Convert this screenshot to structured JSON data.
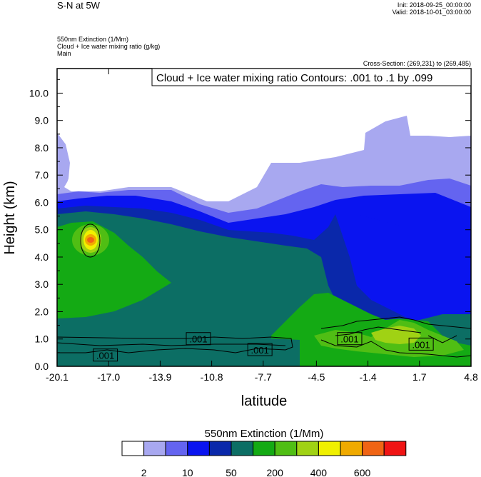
{
  "header": {
    "title": "S-N at 5W",
    "init": "Init: 2018-09-25_00:00:00",
    "valid": "Valid: 2018-10-01_03:00:00",
    "field_lines": [
      "550nm Extinction   (1/Mm)",
      "Cloud + Ice water mixing ratio   (g/kg)",
      "Main"
    ],
    "cross_section": "Cross-Section: (269,231) to (269,485)"
  },
  "chart_data": {
    "type": "heatmap",
    "contour_title": "Cloud + Ice water mixing ratio Contours: .001 to .1 by .099",
    "xlabel": "latitude",
    "ylabel": "Height (km)",
    "xlim": [
      -20.1,
      4.8
    ],
    "ylim": [
      0.0,
      10.9
    ],
    "x_ticks": [
      "-20.1",
      "-17.0",
      "-13.9",
      "-10.8",
      "-7.7",
      "-4.5",
      "-1.4",
      "1.7",
      "4.8"
    ],
    "x_tick_values": [
      -20.1,
      -17.0,
      -13.9,
      -10.8,
      -7.7,
      -4.5,
      -1.4,
      1.7,
      4.8
    ],
    "y_ticks": [
      "0.0",
      "1.0",
      "2.0",
      "3.0",
      "4.0",
      "5.0",
      "6.0",
      "7.0",
      "8.0",
      "9.0",
      "10.0"
    ],
    "y_tick_values": [
      0,
      1,
      2,
      3,
      4,
      5,
      6,
      7,
      8,
      9,
      10
    ],
    "contour_labels": [
      {
        "text": ".001",
        "x": -17.2,
        "y": 0.4
      },
      {
        "text": ".001",
        "x": -11.6,
        "y": 1.0
      },
      {
        "text": ".001",
        "x": -7.9,
        "y": 0.6
      },
      {
        "text": ".001",
        "x": -2.5,
        "y": 1.0
      },
      {
        "text": ".001",
        "x": 1.8,
        "y": 0.8
      }
    ],
    "colorbar": {
      "title": "550nm Extinction  (1/Mm)",
      "colors": [
        "#ffffff",
        "#a8a8f0",
        "#6464f0",
        "#0a14f0",
        "#0a28aa",
        "#0c6e64",
        "#14aa14",
        "#50be14",
        "#a0d214",
        "#f0f000",
        "#f0aa00",
        "#f06414",
        "#f01414"
      ],
      "labels": [
        "2",
        "10",
        "50",
        "200",
        "400",
        "600"
      ]
    }
  }
}
